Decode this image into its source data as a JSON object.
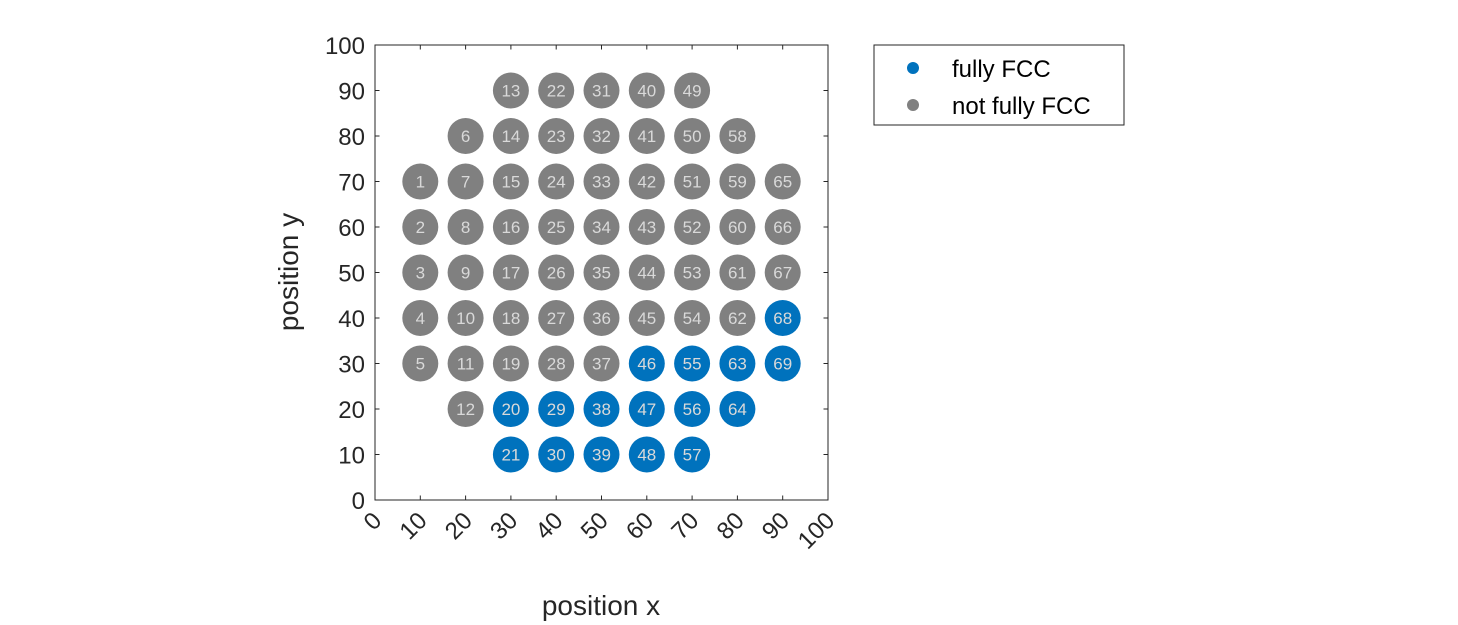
{
  "chart_data": {
    "type": "scatter",
    "xlabel": "position x",
    "ylabel": "position y",
    "xlim": [
      0,
      100
    ],
    "ylim": [
      0,
      100
    ],
    "xticks": [
      "0",
      "10",
      "20",
      "30",
      "40",
      "50",
      "60",
      "70",
      "80",
      "90",
      "100"
    ],
    "yticks": [
      "0",
      "10",
      "20",
      "30",
      "40",
      "50",
      "60",
      "70",
      "80",
      "90",
      "100"
    ],
    "grid": false,
    "legend_position": "outside-right-top",
    "series": [
      {
        "name": "fully FCC",
        "color": "#0072BD",
        "points": [
          {
            "label": "20",
            "x": 30,
            "y": 20
          },
          {
            "label": "21",
            "x": 30,
            "y": 10
          },
          {
            "label": "29",
            "x": 40,
            "y": 20
          },
          {
            "label": "30",
            "x": 40,
            "y": 10
          },
          {
            "label": "38",
            "x": 50,
            "y": 20
          },
          {
            "label": "39",
            "x": 50,
            "y": 10
          },
          {
            "label": "46",
            "x": 60,
            "y": 30
          },
          {
            "label": "47",
            "x": 60,
            "y": 20
          },
          {
            "label": "48",
            "x": 60,
            "y": 10
          },
          {
            "label": "55",
            "x": 70,
            "y": 30
          },
          {
            "label": "56",
            "x": 70,
            "y": 20
          },
          {
            "label": "57",
            "x": 70,
            "y": 10
          },
          {
            "label": "63",
            "x": 80,
            "y": 30
          },
          {
            "label": "64",
            "x": 80,
            "y": 20
          },
          {
            "label": "68",
            "x": 90,
            "y": 40
          },
          {
            "label": "69",
            "x": 90,
            "y": 30
          }
        ]
      },
      {
        "name": "not fully FCC",
        "color": "#808080",
        "points": [
          {
            "label": "1",
            "x": 10,
            "y": 70
          },
          {
            "label": "2",
            "x": 10,
            "y": 60
          },
          {
            "label": "3",
            "x": 10,
            "y": 50
          },
          {
            "label": "4",
            "x": 10,
            "y": 40
          },
          {
            "label": "5",
            "x": 10,
            "y": 30
          },
          {
            "label": "6",
            "x": 20,
            "y": 80
          },
          {
            "label": "7",
            "x": 20,
            "y": 70
          },
          {
            "label": "8",
            "x": 20,
            "y": 60
          },
          {
            "label": "9",
            "x": 20,
            "y": 50
          },
          {
            "label": "10",
            "x": 20,
            "y": 40
          },
          {
            "label": "11",
            "x": 20,
            "y": 30
          },
          {
            "label": "12",
            "x": 20,
            "y": 20
          },
          {
            "label": "13",
            "x": 30,
            "y": 90
          },
          {
            "label": "14",
            "x": 30,
            "y": 80
          },
          {
            "label": "15",
            "x": 30,
            "y": 70
          },
          {
            "label": "16",
            "x": 30,
            "y": 60
          },
          {
            "label": "17",
            "x": 30,
            "y": 50
          },
          {
            "label": "18",
            "x": 30,
            "y": 40
          },
          {
            "label": "19",
            "x": 30,
            "y": 30
          },
          {
            "label": "22",
            "x": 40,
            "y": 90
          },
          {
            "label": "23",
            "x": 40,
            "y": 80
          },
          {
            "label": "24",
            "x": 40,
            "y": 70
          },
          {
            "label": "25",
            "x": 40,
            "y": 60
          },
          {
            "label": "26",
            "x": 40,
            "y": 50
          },
          {
            "label": "27",
            "x": 40,
            "y": 40
          },
          {
            "label": "28",
            "x": 40,
            "y": 30
          },
          {
            "label": "31",
            "x": 50,
            "y": 90
          },
          {
            "label": "32",
            "x": 50,
            "y": 80
          },
          {
            "label": "33",
            "x": 50,
            "y": 70
          },
          {
            "label": "34",
            "x": 50,
            "y": 60
          },
          {
            "label": "35",
            "x": 50,
            "y": 50
          },
          {
            "label": "36",
            "x": 50,
            "y": 40
          },
          {
            "label": "37",
            "x": 50,
            "y": 30
          },
          {
            "label": "40",
            "x": 60,
            "y": 90
          },
          {
            "label": "41",
            "x": 60,
            "y": 80
          },
          {
            "label": "42",
            "x": 60,
            "y": 70
          },
          {
            "label": "43",
            "x": 60,
            "y": 60
          },
          {
            "label": "44",
            "x": 60,
            "y": 50
          },
          {
            "label": "45",
            "x": 60,
            "y": 40
          },
          {
            "label": "49",
            "x": 70,
            "y": 90
          },
          {
            "label": "50",
            "x": 70,
            "y": 80
          },
          {
            "label": "51",
            "x": 70,
            "y": 70
          },
          {
            "label": "52",
            "x": 70,
            "y": 60
          },
          {
            "label": "53",
            "x": 70,
            "y": 50
          },
          {
            "label": "54",
            "x": 70,
            "y": 40
          },
          {
            "label": "58",
            "x": 80,
            "y": 80
          },
          {
            "label": "59",
            "x": 80,
            "y": 70
          },
          {
            "label": "60",
            "x": 80,
            "y": 60
          },
          {
            "label": "61",
            "x": 80,
            "y": 50
          },
          {
            "label": "62",
            "x": 80,
            "y": 40
          },
          {
            "label": "65",
            "x": 90,
            "y": 70
          },
          {
            "label": "66",
            "x": 90,
            "y": 60
          },
          {
            "label": "67",
            "x": 90,
            "y": 50
          }
        ]
      }
    ]
  }
}
